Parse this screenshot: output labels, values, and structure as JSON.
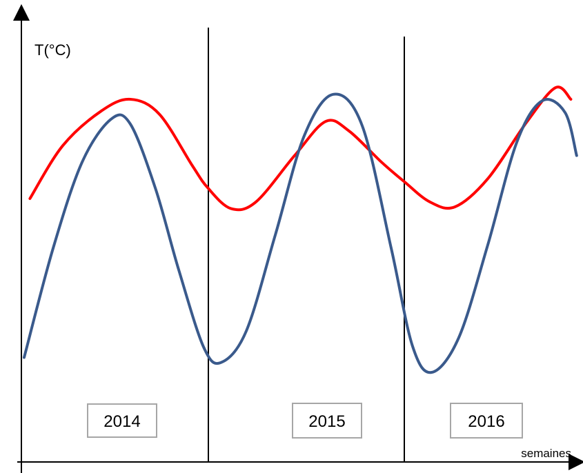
{
  "chart_data": {
    "type": "line",
    "ylabel": "T(°C)",
    "xlabel": "semaines",
    "grid": false,
    "legend": "none",
    "periods": [
      "2014",
      "2015",
      "2016"
    ],
    "series": [
      {
        "color": "#ff0000",
        "points": [
          [
            0.3,
            5.0
          ],
          [
            2,
            6.6
          ],
          [
            4,
            7.65
          ],
          [
            5.5,
            8.0
          ],
          [
            7,
            7.55
          ],
          [
            8.7,
            6.0
          ],
          [
            9.5,
            5.33
          ],
          [
            10.7,
            4.7
          ],
          [
            12,
            4.9
          ],
          [
            14,
            6.3
          ],
          [
            15.6,
            7.33
          ],
          [
            16.8,
            7.05
          ],
          [
            18.5,
            6.1
          ],
          [
            19.7,
            5.5
          ],
          [
            21,
            4.9
          ],
          [
            22.3,
            4.75
          ],
          [
            24,
            5.6
          ],
          [
            26,
            7.3
          ],
          [
            27.5,
            8.35
          ],
          [
            28.3,
            8.0
          ]
        ]
      },
      {
        "color": "#3a5a8c",
        "points": [
          [
            0,
            0.2
          ],
          [
            1.5,
            3.5
          ],
          [
            3,
            6.1
          ],
          [
            4.5,
            7.4
          ],
          [
            5.5,
            7.25
          ],
          [
            6.8,
            5.3
          ],
          [
            8,
            2.85
          ],
          [
            9.3,
            0.5
          ],
          [
            10.2,
            0.05
          ],
          [
            11.5,
            1.0
          ],
          [
            13,
            3.9
          ],
          [
            14.5,
            6.9
          ],
          [
            16,
            8.15
          ],
          [
            17.5,
            7.2
          ],
          [
            19,
            3.5
          ],
          [
            20.1,
            0.55
          ],
          [
            21.1,
            -0.25
          ],
          [
            22.5,
            0.8
          ],
          [
            24,
            3.6
          ],
          [
            25.5,
            6.7
          ],
          [
            26.8,
            7.95
          ],
          [
            28,
            7.6
          ],
          [
            28.6,
            6.3
          ]
        ]
      }
    ]
  }
}
